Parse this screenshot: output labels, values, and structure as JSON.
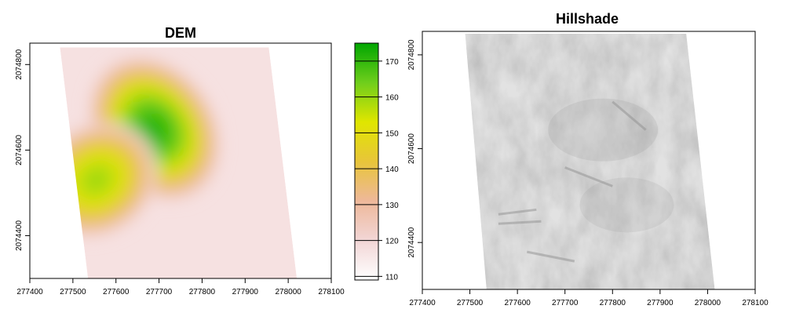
{
  "chart_data": [
    {
      "type": "heatmap",
      "title": "DEM",
      "xlim": [
        277400,
        278100
      ],
      "ylim": [
        2074300,
        2074850
      ],
      "x_ticks": [
        "277400",
        "277500",
        "277600",
        "277700",
        "277800",
        "277900",
        "278000",
        "278100"
      ],
      "y_ticks": [
        "2074400",
        "2074600",
        "2074800"
      ],
      "raster_corners": {
        "top_left": [
          277470,
          2074840
        ],
        "top_right": [
          277955,
          2074840
        ],
        "bottom_right": [
          278020,
          2074300
        ],
        "bottom_left": [
          277535,
          2074300
        ]
      },
      "colorbar": {
        "range": [
          109,
          175
        ],
        "ticks": [
          "110",
          "120",
          "130",
          "140",
          "150",
          "160",
          "170"
        ],
        "colors": [
          "#ffffff",
          "#f2d6d6",
          "#eeb89a",
          "#e8c53a",
          "#e0e600",
          "#6fce1c",
          "#00a600"
        ]
      },
      "elevation_peaks": [
        {
          "x": 277690,
          "y": 2074650,
          "value": 172,
          "sx": 65,
          "sy": 85
        },
        {
          "x": 277555,
          "y": 2074530,
          "value": 160,
          "sx": 70,
          "sy": 60
        }
      ],
      "elevation_background": 117
    },
    {
      "type": "heatmap",
      "title": "Hillshade",
      "xlim": [
        277400,
        278100
      ],
      "ylim": [
        2074300,
        2074850
      ],
      "x_ticks": [
        "277400",
        "277500",
        "277600",
        "277700",
        "277800",
        "277900",
        "278000",
        "278100"
      ],
      "y_ticks": [
        "2074400",
        "2074600",
        "2074800"
      ],
      "raster_corners": {
        "top_left": [
          277490,
          2074845
        ],
        "top_right": [
          277955,
          2074845
        ],
        "bottom_right": [
          278015,
          2074300
        ],
        "bottom_left": [
          277535,
          2074300
        ]
      },
      "colors": [
        "#bfbfbf",
        "#ececec",
        "#8f8f8f"
      ]
    }
  ]
}
